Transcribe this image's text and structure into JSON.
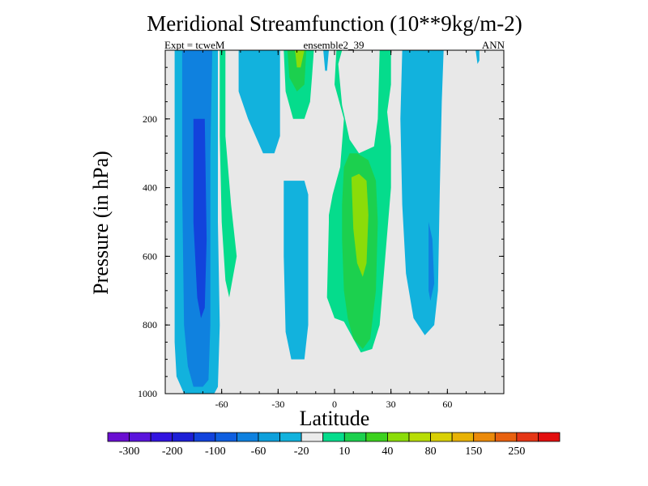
{
  "chart_data": {
    "type": "contour",
    "title": "Meridional Streamfunction (10**9kg/m-2)",
    "subtitle_left": "Expt = tcweM",
    "subtitle_center": "ensemble2_39",
    "subtitle_right": "ANN",
    "xlabel": "Latitude",
    "ylabel": "Pressure (in hPa)",
    "xlim": [
      -90,
      90
    ],
    "ylim": [
      1000,
      0
    ],
    "x_ticks": [
      -60,
      -30,
      0,
      30,
      60
    ],
    "x_tick_labels": [
      "-60",
      "-30",
      "0",
      "30",
      "60"
    ],
    "y_ticks": [
      200,
      400,
      600,
      800,
      1000
    ],
    "y_tick_labels": [
      "200",
      "400",
      "600",
      "800",
      "1000"
    ],
    "colorbar": {
      "labels": [
        "-300",
        "-200",
        "-100",
        "-60",
        "-20",
        "10",
        "40",
        "80",
        "150",
        "250"
      ],
      "colors": [
        "#6a0fd1",
        "#5a14dc",
        "#3214e0",
        "#1d1fd6",
        "#1243dc",
        "#0f5fe0",
        "#0f81df",
        "#0ea0db",
        "#12b2dd",
        "#ebebeb",
        "#05dc8c",
        "#1cd04e",
        "#3cd11e",
        "#8bdc09",
        "#b8dd06",
        "#d9d005",
        "#e8b205",
        "#eb8a0a",
        "#e8610f",
        "#e53616",
        "#e30e0e"
      ]
    },
    "regions": [
      {
        "name": "sh-hadley-cell-outer",
        "level": -20,
        "points": [
          [
            -85,
            0
          ],
          [
            -62,
            0
          ],
          [
            -62,
            50
          ],
          [
            -61,
            80
          ],
          [
            -62,
            98
          ],
          [
            -64,
            100
          ],
          [
            -70,
            100
          ],
          [
            -80,
            100
          ],
          [
            -84,
            95
          ],
          [
            -85,
            85
          ]
        ]
      },
      {
        "name": "sh-hadley-cell-mid",
        "level": -60,
        "points": [
          [
            -81,
            0
          ],
          [
            -65,
            0
          ],
          [
            -66,
            30
          ],
          [
            -66,
            80
          ],
          [
            -67,
            96
          ],
          [
            -70,
            98
          ],
          [
            -75,
            98
          ],
          [
            -78,
            92
          ],
          [
            -80,
            80
          ],
          [
            -81,
            40
          ]
        ]
      },
      {
        "name": "sh-hadley-cell-core",
        "level": -100,
        "points": [
          [
            -75,
            20
          ],
          [
            -69,
            20
          ],
          [
            -68,
            55
          ],
          [
            -69,
            75
          ],
          [
            -71,
            78
          ],
          [
            -73,
            72
          ],
          [
            -75,
            50
          ]
        ]
      },
      {
        "name": "ferrel-cell-upper",
        "level": -20,
        "points": [
          [
            -51,
            0
          ],
          [
            -29,
            0
          ],
          [
            -29,
            25
          ],
          [
            -32,
            30
          ],
          [
            -38,
            30
          ],
          [
            -46,
            20
          ],
          [
            -51,
            12
          ]
        ]
      },
      {
        "name": "mid-tropics-cell",
        "level": -20,
        "points": [
          [
            -27,
            38
          ],
          [
            -16,
            38
          ],
          [
            -14,
            42
          ],
          [
            -14,
            80
          ],
          [
            -16,
            90
          ],
          [
            -23,
            90
          ],
          [
            -26,
            82
          ],
          [
            -27,
            60
          ]
        ]
      },
      {
        "name": "strat-blob",
        "level": -20,
        "points": [
          [
            -6,
            0
          ],
          [
            -3,
            0
          ],
          [
            -4,
            6
          ],
          [
            -5,
            6
          ]
        ]
      },
      {
        "name": "sh-subtropical-positive",
        "level": 10,
        "points": [
          [
            -61,
            0
          ],
          [
            -58,
            0
          ],
          [
            -58,
            25
          ],
          [
            -55,
            45
          ],
          [
            -52,
            60
          ],
          [
            -56,
            72
          ],
          [
            -58,
            67
          ],
          [
            -60,
            50
          ],
          [
            -61,
            25
          ]
        ]
      },
      {
        "name": "upper-positive-cell",
        "level": 10,
        "points": [
          [
            -27,
            0
          ],
          [
            -11,
            0
          ],
          [
            -12,
            8
          ],
          [
            -13,
            15
          ],
          [
            -16,
            20
          ],
          [
            -22,
            20
          ],
          [
            -26,
            12
          ]
        ]
      },
      {
        "name": "upper-positive-cell-inner",
        "level": 40,
        "points": [
          [
            -25,
            0
          ],
          [
            -15,
            0
          ],
          [
            -16,
            10
          ],
          [
            -20,
            12
          ],
          [
            -24,
            8
          ]
        ]
      },
      {
        "name": "upper-positive-cell-core",
        "level": 80,
        "points": [
          [
            -21,
            0
          ],
          [
            -16,
            0
          ],
          [
            -18,
            5
          ],
          [
            -20,
            5
          ]
        ]
      },
      {
        "name": "nh-hadley-cell-outer",
        "level": 10,
        "points": [
          [
            4,
            0
          ],
          [
            2,
            4
          ],
          [
            4,
            16
          ],
          [
            8,
            26
          ],
          [
            13,
            30
          ],
          [
            21,
            28
          ],
          [
            23,
            20
          ],
          [
            24,
            0
          ],
          [
            30,
            0
          ],
          [
            30,
            10
          ],
          [
            28,
            18
          ],
          [
            30,
            28
          ],
          [
            30,
            40
          ],
          [
            27,
            60
          ],
          [
            24,
            80
          ],
          [
            20,
            87
          ],
          [
            14,
            88
          ],
          [
            10,
            84
          ],
          [
            5,
            79
          ],
          [
            0,
            78
          ],
          [
            -4,
            72
          ],
          [
            -3,
            50
          ],
          [
            -3,
            48
          ],
          [
            -1,
            42
          ],
          [
            1,
            38
          ],
          [
            3,
            34
          ],
          [
            5,
            20
          ],
          [
            0,
            10
          ],
          [
            1,
            0
          ]
        ]
      },
      {
        "name": "nh-hadley-cell-mid",
        "level": 40,
        "points": [
          [
            5,
            34
          ],
          [
            8,
            30
          ],
          [
            12,
            30
          ],
          [
            18,
            32
          ],
          [
            22,
            38
          ],
          [
            23,
            50
          ],
          [
            22,
            70
          ],
          [
            19,
            84
          ],
          [
            15,
            87
          ],
          [
            10,
            84
          ],
          [
            7,
            78
          ],
          [
            5,
            70
          ],
          [
            4,
            55
          ],
          [
            4,
            45
          ]
        ]
      },
      {
        "name": "nh-hadley-cell-core",
        "level": 80,
        "points": [
          [
            9,
            37
          ],
          [
            13,
            36
          ],
          [
            17,
            38
          ],
          [
            18,
            48
          ],
          [
            17,
            62
          ],
          [
            15,
            66
          ],
          [
            12,
            62
          ],
          [
            10,
            52
          ]
        ]
      },
      {
        "name": "nh-cell-blue-right",
        "level": -20,
        "points": [
          [
            36,
            0
          ],
          [
            58,
            0
          ],
          [
            57,
            15
          ],
          [
            56,
            40
          ],
          [
            55,
            70
          ],
          [
            53,
            80
          ],
          [
            48,
            83
          ],
          [
            42,
            78
          ],
          [
            38,
            65
          ],
          [
            36,
            45
          ],
          [
            35,
            20
          ]
        ]
      },
      {
        "name": "nh-cell-blue-right-inner",
        "level": -60,
        "points": [
          [
            50,
            50
          ],
          [
            52,
            55
          ],
          [
            53,
            68
          ],
          [
            51,
            73
          ],
          [
            50,
            70
          ]
        ]
      },
      {
        "name": "polar-blob",
        "level": -20,
        "points": [
          [
            75,
            0
          ],
          [
            77,
            0
          ],
          [
            77,
            3
          ],
          [
            76,
            4
          ]
        ]
      }
    ]
  }
}
